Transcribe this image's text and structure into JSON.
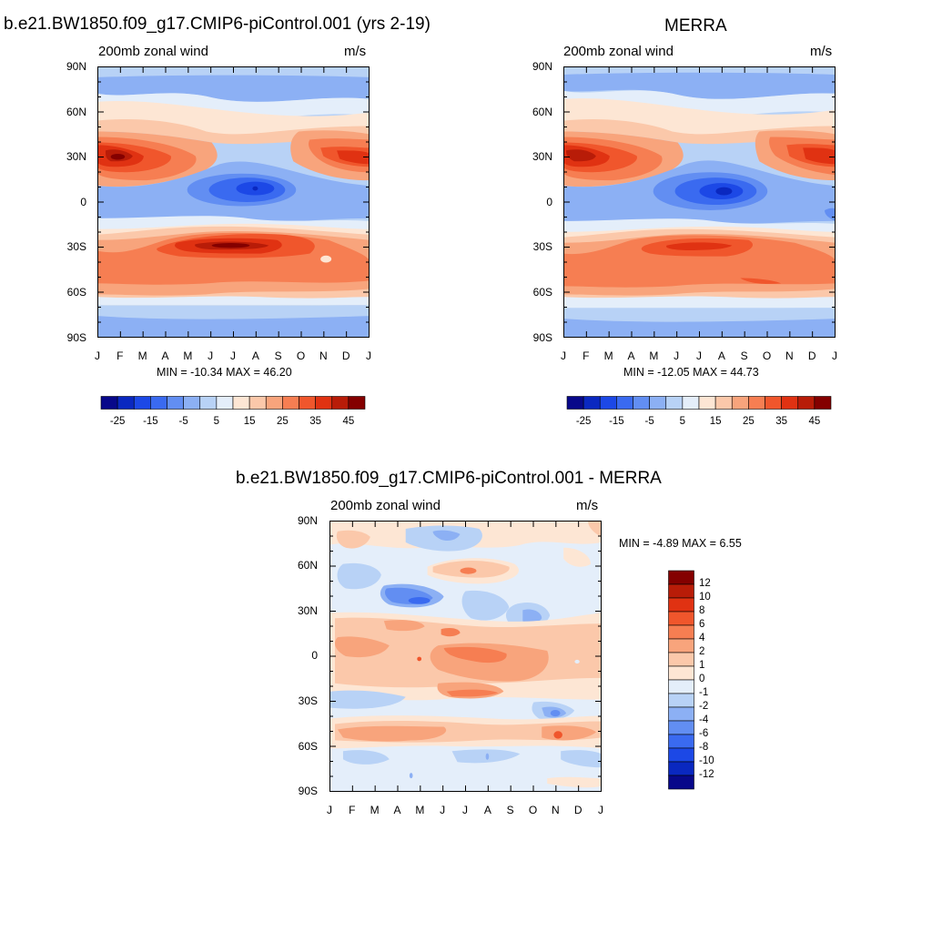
{
  "panels": {
    "model": {
      "title": "b.e21.BW1850.f09_g17.CMIP6-piControl.001 (yrs 2-19)",
      "left_string": "200mb zonal wind",
      "right_string": "m/s",
      "minmax": "MIN = -10.34 MAX =  46.20"
    },
    "obs": {
      "title": "MERRA",
      "left_string": "200mb zonal wind",
      "right_string": "m/s",
      "minmax": "MIN = -12.05 MAX =  44.73"
    },
    "diff": {
      "title": "b.e21.BW1850.f09_g17.CMIP6-piControl.001 - MERRA",
      "left_string": "200mb zonal wind",
      "right_string": "m/s",
      "minmax": "MIN =  -4.89 MAX =   6.55"
    }
  },
  "axes": {
    "y_ticks": [
      "90N",
      "60N",
      "30N",
      "0",
      "30S",
      "60S",
      "90S"
    ],
    "x_ticks": [
      "J",
      "F",
      "M",
      "A",
      "M",
      "J",
      "J",
      "A",
      "S",
      "O",
      "N",
      "D",
      "J"
    ]
  },
  "colorbars": {
    "abs_labels": [
      "-25",
      "-15",
      "-5",
      "5",
      "15",
      "25",
      "35",
      "45"
    ],
    "abs_colors": [
      "#08088a",
      "#0a28c0",
      "#1c48e6",
      "#3a6af0",
      "#628ef2",
      "#8cb0f4",
      "#b8d2f6",
      "#e4eefa",
      "#fde6d4",
      "#fbc8aa",
      "#f8a47c",
      "#f67e52",
      "#f0562c",
      "#e03212",
      "#b81c08",
      "#840000"
    ],
    "diff_labels": [
      "12",
      "10",
      "8",
      "6",
      "4",
      "2",
      "1",
      "0",
      "-1",
      "-2",
      "-4",
      "-6",
      "-8",
      "-10",
      "-12"
    ],
    "diff_colors": [
      "#840000",
      "#b81c08",
      "#e03212",
      "#f0562c",
      "#f67e52",
      "#f8a47c",
      "#fbc8aa",
      "#fde6d4",
      "#e4eefa",
      "#b8d2f6",
      "#8cb0f4",
      "#628ef2",
      "#3a6af0",
      "#1c48e6",
      "#0a28c0",
      "#08088a"
    ]
  },
  "chart_data": [
    {
      "type": "heatmap",
      "title": "b.e21.BW1850.f09_g17.CMIP6-piControl.001 (yrs 2-19)",
      "subtitle": "200mb zonal wind",
      "units": "m/s",
      "x": [
        "J",
        "F",
        "M",
        "A",
        "M",
        "J",
        "J",
        "A",
        "S",
        "O",
        "N",
        "D",
        "J"
      ],
      "y": [
        "90S",
        "60S",
        "30S",
        "0",
        "30N",
        "60N",
        "90N"
      ],
      "ylim": [
        -90,
        90
      ],
      "min": -10.34,
      "max": 46.2,
      "features": [
        {
          "name": "subtropical jet NH",
          "lat": 30,
          "month": "Jan",
          "value": 46
        },
        {
          "name": "subtropical jet SH",
          "lat": -28,
          "month": "Jul-Aug",
          "value": 44
        },
        {
          "name": "equatorial easterlies",
          "lat": 6,
          "month": "Aug",
          "value": -10
        }
      ]
    },
    {
      "type": "heatmap",
      "title": "MERRA",
      "subtitle": "200mb zonal wind",
      "units": "m/s",
      "x": [
        "J",
        "F",
        "M",
        "A",
        "M",
        "J",
        "J",
        "A",
        "S",
        "O",
        "N",
        "D",
        "J"
      ],
      "y": [
        "90S",
        "60S",
        "30S",
        "0",
        "30N",
        "60N",
        "90N"
      ],
      "ylim": [
        -90,
        90
      ],
      "min": -12.05,
      "max": 44.73,
      "features": [
        {
          "name": "subtropical jet NH",
          "lat": 30,
          "month": "Jan",
          "value": 44
        },
        {
          "name": "subtropical jet SH",
          "lat": -28,
          "month": "Jul",
          "value": 40
        },
        {
          "name": "equatorial easterlies",
          "lat": 6,
          "month": "Aug",
          "value": -12
        }
      ]
    },
    {
      "type": "heatmap",
      "title": "b.e21.BW1850.f09_g17.CMIP6-piControl.001 - MERRA",
      "subtitle": "200mb zonal wind",
      "units": "m/s",
      "x": [
        "J",
        "F",
        "M",
        "A",
        "M",
        "J",
        "J",
        "A",
        "S",
        "O",
        "N",
        "D",
        "J"
      ],
      "y": [
        "90S",
        "60S",
        "30S",
        "0",
        "30N",
        "60N",
        "90N"
      ],
      "ylim": [
        -90,
        90
      ],
      "min": -4.89,
      "max": 6.55
    }
  ]
}
